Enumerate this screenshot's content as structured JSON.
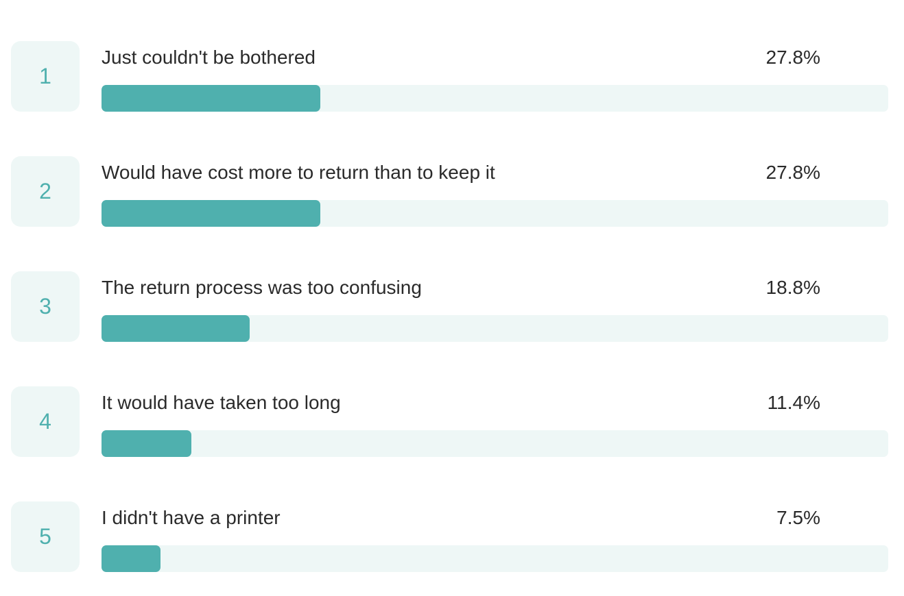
{
  "chart_data": {
    "type": "bar",
    "orientation": "horizontal",
    "value_unit": "%",
    "xlim": [
      0,
      100
    ],
    "colors": {
      "fill": "#4fb0ae",
      "track": "#eef7f6",
      "rank_box": "#eef7f6",
      "rank_text": "#4fb0ae",
      "text": "#2a2a2a"
    },
    "items": [
      {
        "rank": "1",
        "label": "Just couldn't be bothered",
        "value": 27.8,
        "value_label": "27.8%"
      },
      {
        "rank": "2",
        "label": "Would have cost more to return than to keep it",
        "value": 27.8,
        "value_label": "27.8%"
      },
      {
        "rank": "3",
        "label": "The return process was too confusing",
        "value": 18.8,
        "value_label": "18.8%"
      },
      {
        "rank": "4",
        "label": "It would have taken too long",
        "value": 11.4,
        "value_label": "11.4%"
      },
      {
        "rank": "5",
        "label": "I didn't have a printer",
        "value": 7.5,
        "value_label": "7.5%"
      }
    ]
  }
}
